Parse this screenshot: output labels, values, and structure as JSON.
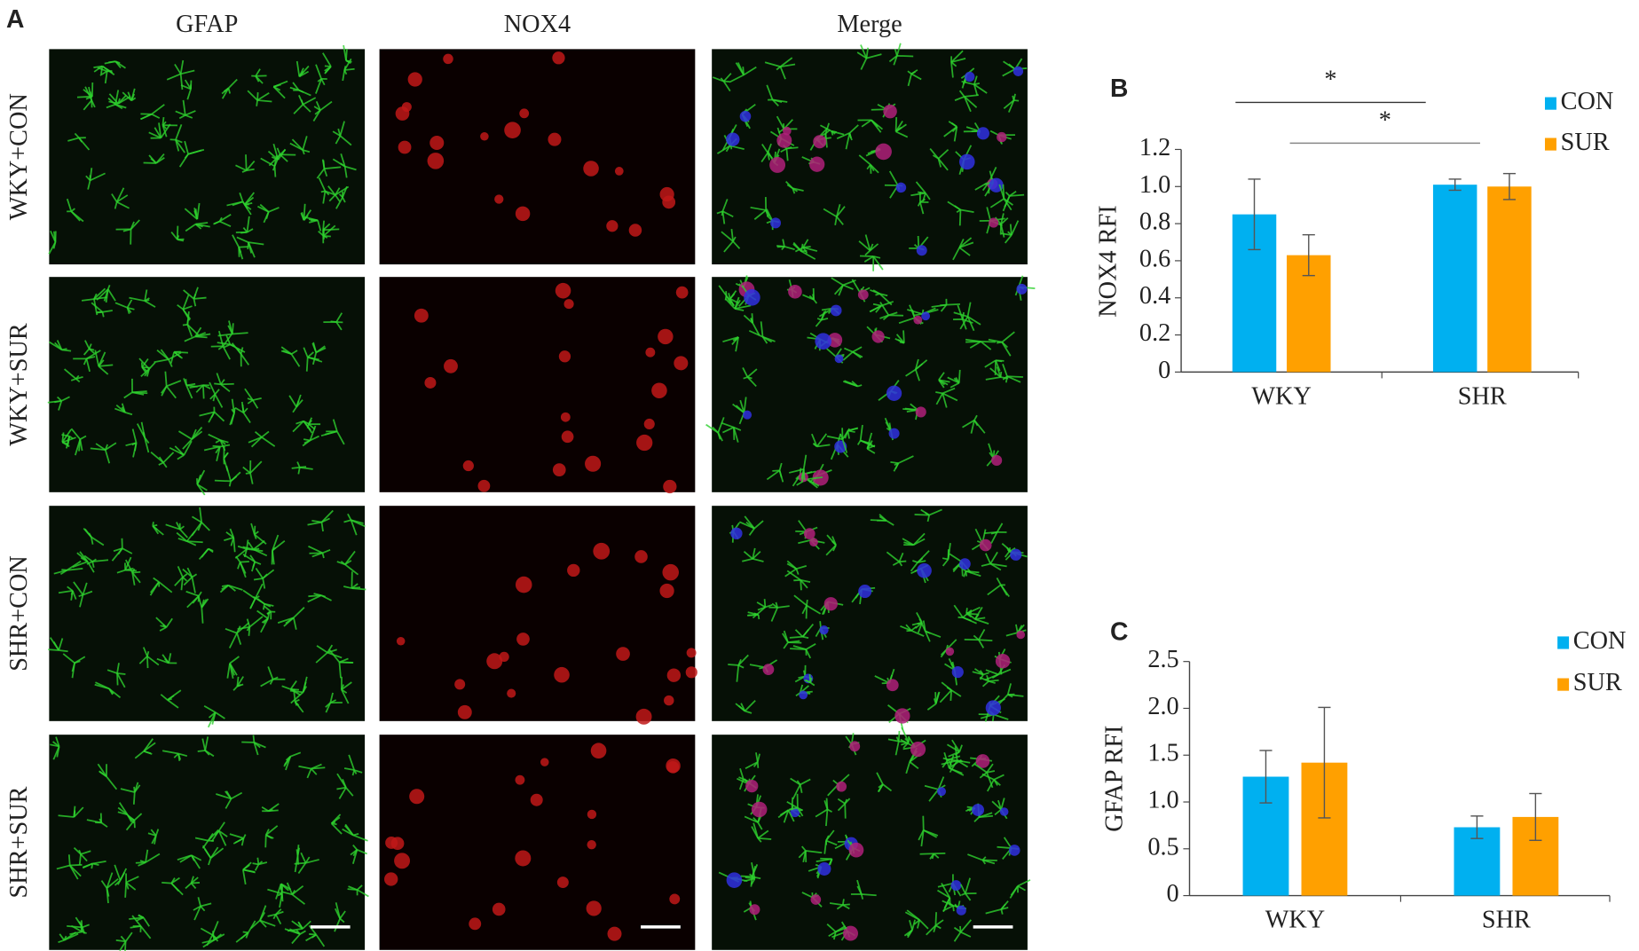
{
  "figure": {
    "panel": "A",
    "columns": [
      "GFAP",
      "NOX4",
      "Merge"
    ],
    "rows": [
      "WKY+CON",
      "WKY+SUR",
      "SHR+CON",
      "SHR+SUR"
    ]
  },
  "chart_data": [
    {
      "type": "bar",
      "panel": "B",
      "y_label": "NOX4 RFI",
      "categories": [
        "WKY",
        "SHR"
      ],
      "series": [
        {
          "name": "CON",
          "color": "#00b0f0",
          "values": [
            0.85,
            1.01
          ],
          "errors": [
            0.19,
            0.03
          ]
        },
        {
          "name": "SUR",
          "color": "#ffa000",
          "values": [
            0.63,
            1.0
          ],
          "errors": [
            0.11,
            0.07
          ]
        }
      ],
      "ylim": [
        0,
        1.2
      ],
      "yticks": [
        0,
        0.2,
        0.4,
        0.6,
        0.8,
        {
          "value": 1,
          "label": "1.0"
        },
        1.2
      ],
      "annotations": [
        "*",
        "*"
      ],
      "legend": "top-right"
    },
    {
      "type": "bar",
      "panel": "C",
      "y_label": "GFAP RFI",
      "categories": [
        "WKY",
        "SHR"
      ],
      "series": [
        {
          "name": "CON",
          "color": "#00b0f0",
          "values": [
            1.27,
            0.73
          ],
          "errors": [
            0.28,
            0.12
          ]
        },
        {
          "name": "SUR",
          "color": "#ffa000",
          "values": [
            1.42,
            0.84
          ],
          "errors": [
            0.59,
            0.25
          ]
        }
      ],
      "ylim": [
        0,
        2.5
      ],
      "yticks": [
        0,
        0.5,
        {
          "value": 1,
          "label": "1.0"
        },
        1.5,
        {
          "value": 2,
          "label": "2.0"
        },
        2.5
      ],
      "legend": "top-right"
    }
  ]
}
